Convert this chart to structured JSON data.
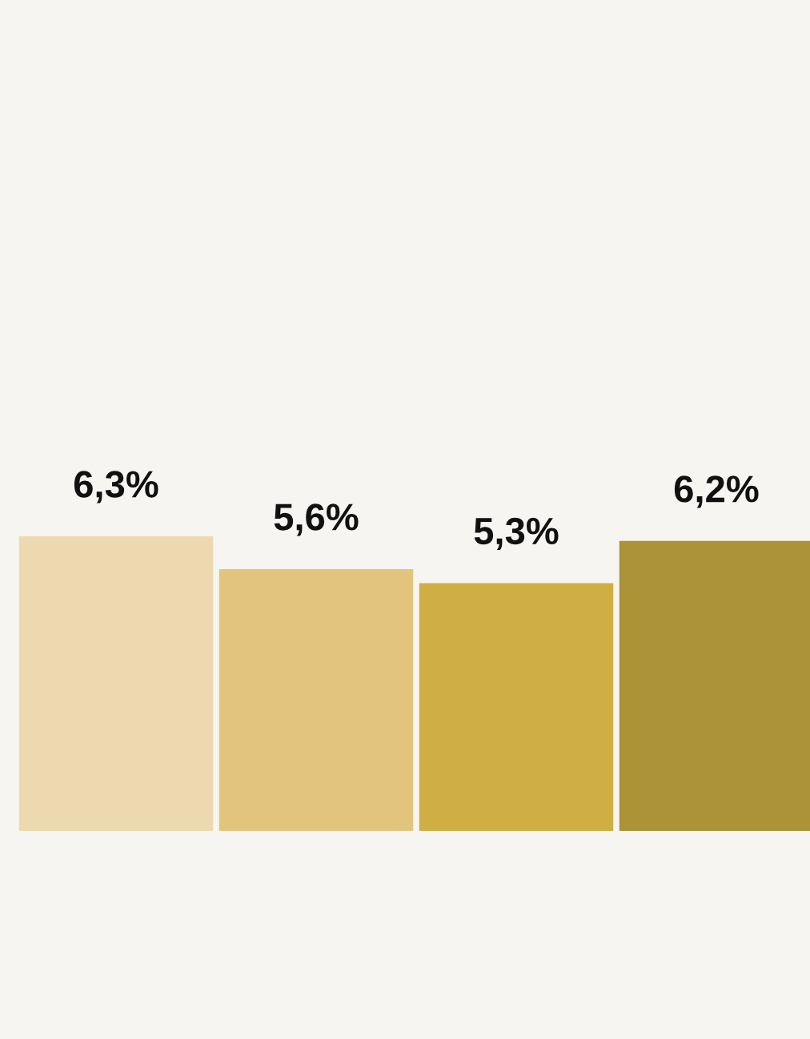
{
  "chart_data": {
    "type": "bar",
    "categories": [
      null,
      null,
      null,
      null
    ],
    "values": [
      6.3,
      5.6,
      5.3,
      6.2
    ],
    "value_labels": [
      "6,3%",
      "5,6%",
      "5,3%",
      "6,2%"
    ],
    "colors": [
      "#ecd9b0",
      "#e2c47c",
      "#cfae44",
      "#ac9338"
    ],
    "grid": false,
    "legend": false
  }
}
